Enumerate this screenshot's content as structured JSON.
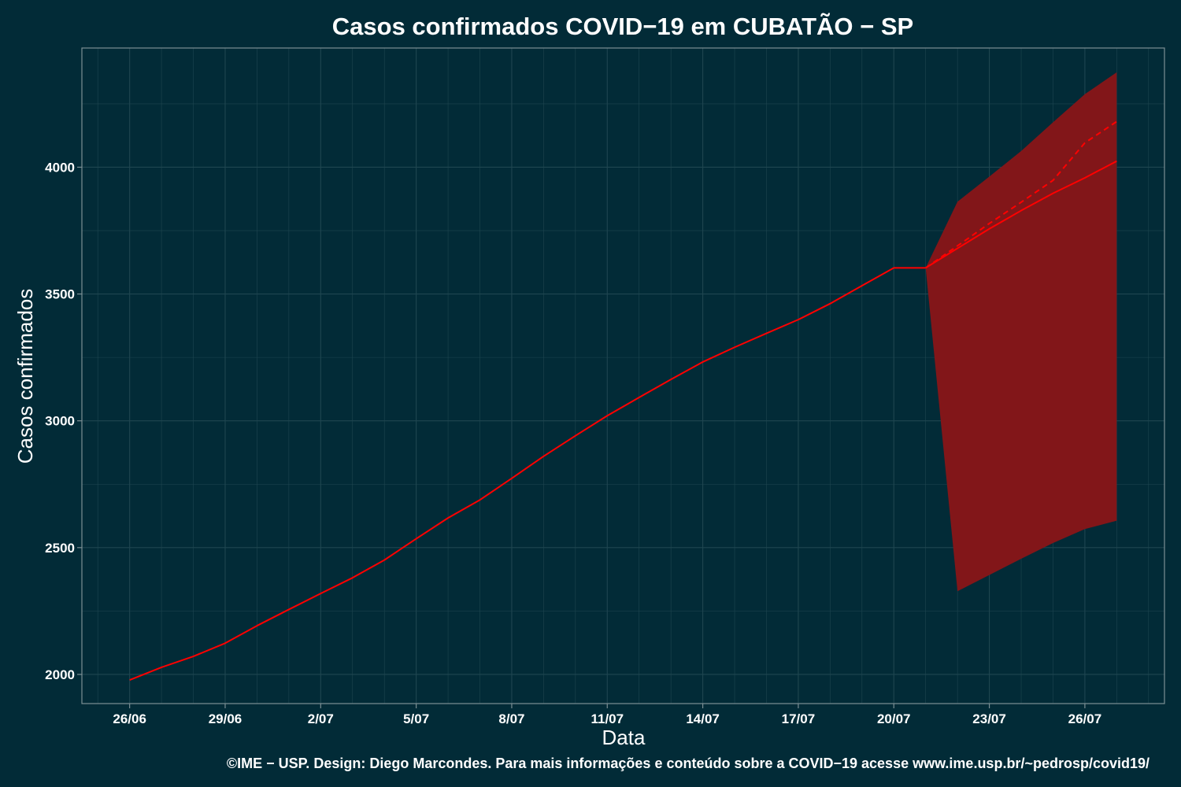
{
  "chart_data": {
    "type": "line",
    "title": "Casos confirmados COVID−19 em CUBATÃO − SP",
    "xlabel": "Data",
    "ylabel": "Casos confirmados",
    "caption": "©IME − USP. Design: Diego Marcondes. Para mais informações e conteúdo sobre a COVID−19 acesse www.ime.usp.br/~pedrosp/covid19/",
    "x_ticks": [
      "26/06",
      "29/06",
      "2/07",
      "5/07",
      "8/07",
      "11/07",
      "14/07",
      "17/07",
      "20/07",
      "23/07",
      "26/07"
    ],
    "y_ticks": [
      2000,
      2500,
      3000,
      3500,
      4000
    ],
    "ylim": [
      1885,
      4470
    ],
    "x_range_days": [
      -1.5,
      32.5
    ],
    "x_origin_date": "26/06",
    "grid": true,
    "colors": {
      "background": "#022b37",
      "line": "#ff0000",
      "band": "#821619",
      "grid": "#1f4650",
      "frame": "#7c8f94"
    },
    "series": [
      {
        "name": "",
        "style": "solid",
        "x": [
          "26/06",
          "27/06",
          "28/06",
          "29/06",
          "30/06",
          "1/07",
          "2/07",
          "3/07",
          "4/07",
          "5/07",
          "6/07",
          "7/07",
          "8/07",
          "9/07",
          "10/07",
          "11/07",
          "12/07",
          "13/07",
          "14/07",
          "15/07",
          "16/07",
          "17/07",
          "18/07",
          "19/07",
          "20/07",
          "21/07"
        ],
        "y": [
          1978,
          2028,
          2071,
          2123,
          2192,
          2256,
          2319,
          2381,
          2451,
          2535,
          2617,
          2688,
          2773,
          2860,
          2941,
          3020,
          3092,
          3163,
          3232,
          3290,
          3345,
          3399,
          3462,
          3533,
          3603,
          3603
        ]
      },
      {
        "name": "",
        "style": "solid",
        "x": [
          "21/07",
          "22/07",
          "23/07",
          "24/07",
          "25/07",
          "26/07",
          "27/07"
        ],
        "y": [
          3603,
          3680,
          3757,
          3829,
          3897,
          3958,
          4024
        ]
      },
      {
        "name": "",
        "style": "dashed",
        "x": [
          "21/07",
          "22/07",
          "23/07",
          "24/07",
          "25/07",
          "26/07",
          "27/07"
        ],
        "y": [
          3603,
          3690,
          3778,
          3862,
          3948,
          4096,
          4180
        ]
      }
    ],
    "band": {
      "x": [
        "21/07",
        "22/07",
        "23/07",
        "24/07",
        "25/07",
        "26/07",
        "27/07"
      ],
      "lower": [
        3603,
        2328,
        2392,
        2456,
        2518,
        2573,
        2606
      ],
      "upper": [
        3603,
        3864,
        3963,
        4064,
        4177,
        4288,
        4374
      ]
    }
  }
}
